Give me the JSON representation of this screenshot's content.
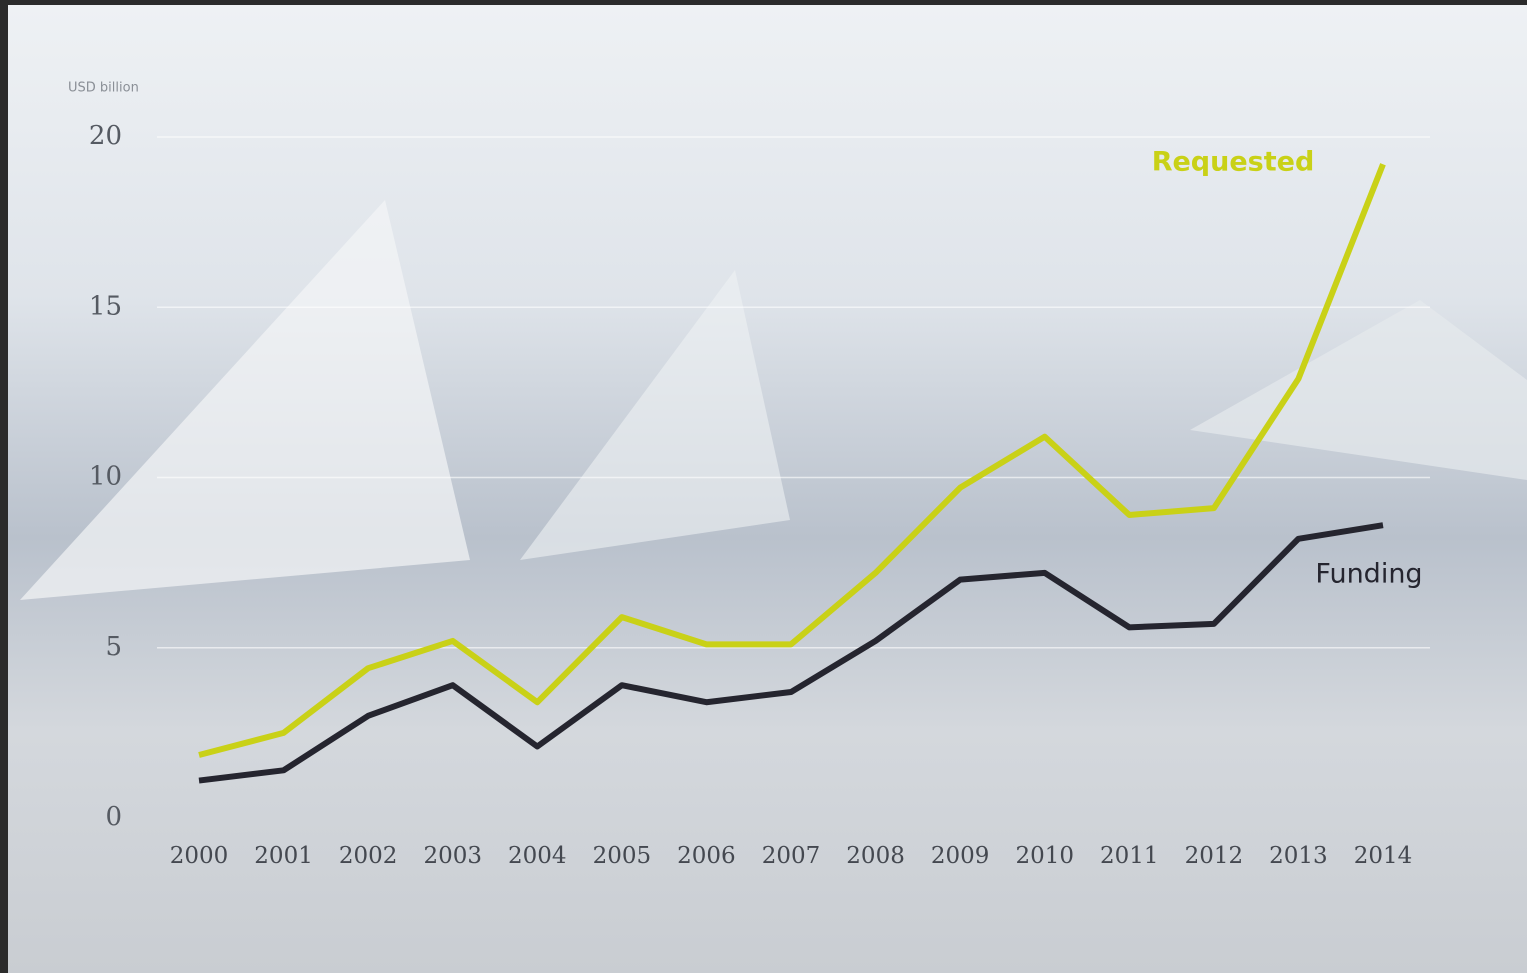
{
  "chart_data": {
    "type": "line",
    "y_label": "USD billion",
    "categories": [
      "2000",
      "2001",
      "2002",
      "2003",
      "2004",
      "2005",
      "2006",
      "2007",
      "2008",
      "2009",
      "2010",
      "2011",
      "2012",
      "2013",
      "2014"
    ],
    "series": [
      {
        "name": "Requested",
        "color": "#c9d117",
        "values": [
          1.85,
          2.5,
          4.4,
          5.2,
          3.4,
          5.9,
          5.1,
          5.1,
          7.2,
          9.7,
          11.2,
          8.9,
          9.1,
          12.9,
          19.2
        ]
      },
      {
        "name": "Funding",
        "color": "#25252f",
        "values": [
          1.1,
          1.4,
          3.0,
          3.9,
          2.1,
          3.9,
          3.4,
          3.7,
          5.2,
          7.0,
          7.2,
          5.6,
          5.7,
          8.2,
          8.6
        ]
      }
    ],
    "ylim": [
      0,
      20
    ],
    "yticks": [
      0,
      5,
      10,
      15,
      20
    ],
    "grid": true
  }
}
